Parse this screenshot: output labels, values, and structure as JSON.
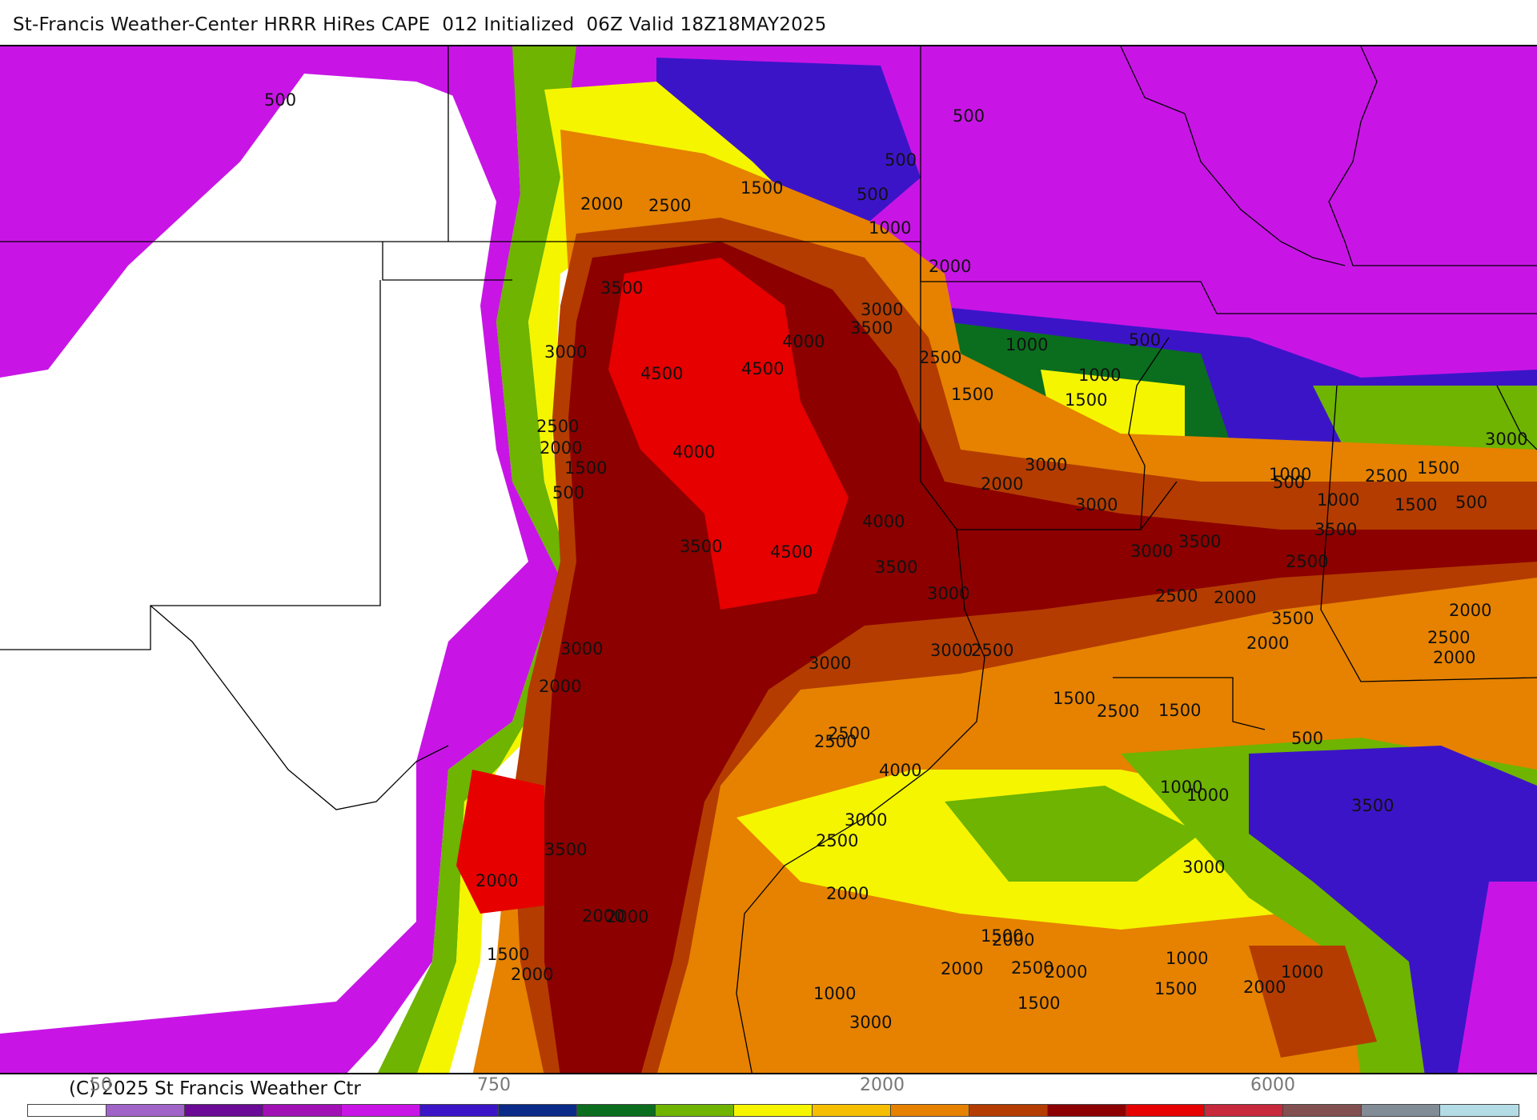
{
  "header": {
    "title": "St-Francis Weather-Center HRRR HiRes CAPE  012 Initialized  06Z Valid 18Z18MAY2025"
  },
  "footer": {
    "copyright": "(C) 2025 St Francis Weather Ctr"
  },
  "colorbar": {
    "tick_labels": [
      "50",
      "750",
      "2000",
      "6000"
    ],
    "colors": [
      "#ffffff",
      "#a064c8",
      "#6a0a96",
      "#a010b4",
      "#c815e6",
      "#3c14c8",
      "#0a2a8a",
      "#0a6e1e",
      "#6eb400",
      "#f5f500",
      "#f5be00",
      "#e68200",
      "#b43c00",
      "#8c0000",
      "#e60000",
      "#c8283c",
      "#825050",
      "#828c96",
      "#b4dce6"
    ]
  },
  "map": {
    "contour_labels": [
      "500",
      "500",
      "500",
      "500",
      "500",
      "1000",
      "1500",
      "2000",
      "2500",
      "2000",
      "3500",
      "3000",
      "3000",
      "3500",
      "4000",
      "4500",
      "4500",
      "2500",
      "1500",
      "2500",
      "2000",
      "1500",
      "500",
      "4000",
      "1000",
      "1000",
      "1500",
      "500",
      "4000",
      "3500",
      "4500",
      "3500",
      "3000",
      "3000",
      "3500",
      "3000",
      "2000",
      "2500",
      "1500",
      "1000",
      "1000",
      "500",
      "1500",
      "3000",
      "3000",
      "3500",
      "2500",
      "3000",
      "3000",
      "2500",
      "3000",
      "2500",
      "2000",
      "2500",
      "2000",
      "3500",
      "2000",
      "2500",
      "2000",
      "3000",
      "2000",
      "1500",
      "2500",
      "1500",
      "1000",
      "1000",
      "500",
      "2500",
      "4000",
      "3500",
      "3000",
      "2500",
      "2000",
      "3500",
      "2000",
      "2000",
      "1500",
      "2000",
      "1500",
      "2000",
      "2000",
      "1500",
      "3000",
      "1000",
      "2000",
      "2500",
      "2000",
      "1500",
      "1000",
      "1000",
      "2000",
      "2000"
    ]
  }
}
